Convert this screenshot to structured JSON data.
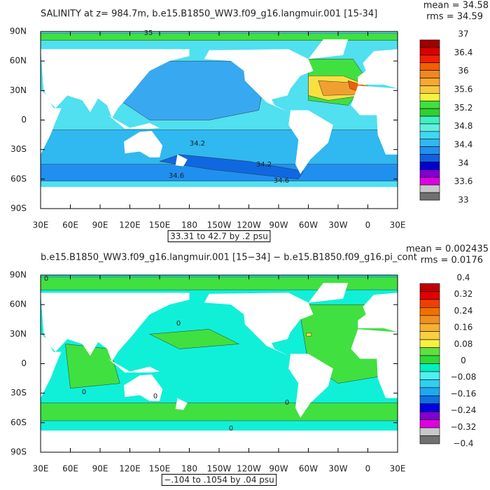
{
  "panels": [
    {
      "title": "SALINITY at z= 984.7m, b.e15.B1850_WW3.f09_g16.langmuir.001 [15-34]",
      "mean": "mean = 34.58",
      "rms": "rms = 34.59",
      "lat_labels": [
        "90N",
        "60N",
        "30N",
        "0",
        "30S",
        "60S",
        "90S"
      ],
      "lon_labels": [
        "30E",
        "60E",
        "90E",
        "120E",
        "150E",
        "180",
        "150W",
        "120W",
        "90W",
        "60W",
        "30W",
        "0",
        "30E"
      ],
      "range": "33.31 to 42.7 by .2 psu",
      "colorbar_labels": [
        "37",
        "36.4",
        "36",
        "35.6",
        "35.2",
        "34.8",
        "34.4",
        "34",
        "33.6",
        "33"
      ],
      "colorbar_colors": [
        "#a00000",
        "#d80000",
        "#f02000",
        "#f06000",
        "#f08820",
        "#f8a830",
        "#f8c840",
        "#f8f040",
        "#40e040",
        "#30d030",
        "#40f0c0",
        "#60f0e0",
        "#40d8f0",
        "#30b8f0",
        "#2090f0",
        "#1060e0",
        "#0000d0",
        "#8000d0",
        "#e000e0",
        "#c8c8c8",
        "#707070"
      ],
      "contour_labels": [
        "35",
        "34.2",
        "34.2",
        "34.6",
        "34.6"
      ]
    },
    {
      "title": "b.e15.B1850_WW3.f09_g16.langmuir.001 [15−34] − b.e15.B1850.f09_g16.pi_cont",
      "mean": "mean = 0.002435",
      "rms": "rms = 0.0176",
      "lat_labels": [
        "90N",
        "60N",
        "30N",
        "0",
        "30S",
        "60S",
        "90S"
      ],
      "lon_labels": [
        "30E",
        "60E",
        "90E",
        "120E",
        "150E",
        "180",
        "150W",
        "120W",
        "90W",
        "60W",
        "30W",
        "0",
        "30E"
      ],
      "range": "−.104 to .1054 by .04 psu",
      "colorbar_labels": [
        "0.4",
        "0.32",
        "0.24",
        "0.16",
        "0.08",
        "0",
        "−0.08",
        "−0.16",
        "−0.24",
        "−0.32",
        "−0.4"
      ],
      "colorbar_colors": [
        "#c00000",
        "#e00000",
        "#f04000",
        "#f07000",
        "#f09020",
        "#f8b030",
        "#f8d040",
        "#f8f040",
        "#60e040",
        "#30d838",
        "#00f0c0",
        "#50f0f0",
        "#30d0f0",
        "#20a8f0",
        "#1070e0",
        "#0000e0",
        "#8000d0",
        "#e000e0",
        "#c8c8c8",
        "#707070"
      ],
      "contour_labels": [
        "0",
        "0",
        "0",
        "0",
        "0",
        "0"
      ]
    }
  ]
}
